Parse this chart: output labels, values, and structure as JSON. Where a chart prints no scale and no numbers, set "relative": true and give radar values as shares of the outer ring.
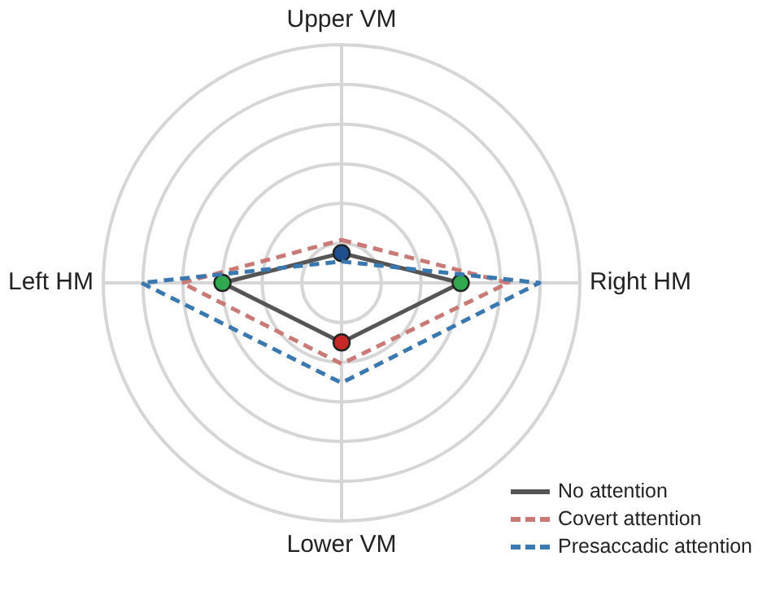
{
  "chart_data": {
    "type": "radar",
    "relative": true,
    "grid": true,
    "legend": "bottom right",
    "categories": [
      "Upper VM",
      "Right HM",
      "Lower VM",
      "Left HM"
    ],
    "series": [
      {
        "name": "No attention",
        "color": "#555555",
        "line_style": "solid",
        "marker": "circle",
        "colors": [
          "#1f4e8c",
          "#2fa84f",
          "#c62828",
          "#2fa84f"
        ],
        "values": [
          0.125,
          0.5,
          0.25,
          0.5
        ]
      },
      {
        "name": "Covert attention",
        "color": "#c97a76",
        "line_style": "dashed",
        "marker": "none",
        "values": [
          0.18,
          0.7,
          0.34,
          0.67
        ]
      },
      {
        "name": "Presaccadic attention",
        "color": "#3a78b0",
        "line_style": "dashed",
        "marker": "none",
        "values": [
          0.09,
          0.83,
          0.42,
          0.84
        ]
      }
    ]
  }
}
